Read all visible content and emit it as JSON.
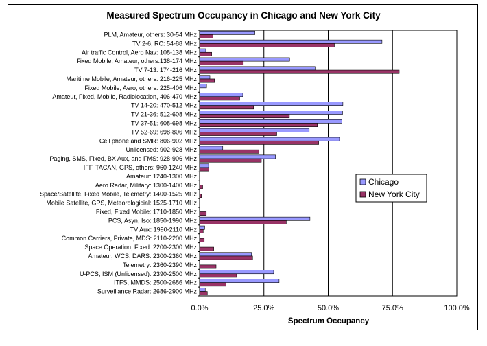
{
  "chart_data": {
    "type": "bar",
    "orientation": "horizontal",
    "title": "Measured Spectrum Occupancy in Chicago and New York City",
    "xlabel": "Spectrum Occupancy",
    "ylabel": "",
    "xlim": [
      0,
      100
    ],
    "xticks": [
      "0.0%",
      "25.0%",
      "50.0%",
      "75.0%",
      "100.0%"
    ],
    "grid": "vertical major gridlines",
    "legend_position": "right",
    "categories": [
      "PLM, Amateur, others: 30-54 MHz",
      "TV 2-6, RC: 54-88 MHz",
      "Air traffic Control, Aero Nav: 108-138 MHz",
      "Fixed Mobile, Amateur, others:138-174 MHz",
      "TV 7-13: 174-216 MHz",
      "Maritime Mobile, Amateur, others: 216-225 MHz",
      "Fixed Mobile, Aero, others: 225-406 MHz",
      "Amateur, Fixed, Mobile, Radiolocation, 406-470 MHz",
      "TV 14-20: 470-512 MHz",
      "TV 21-36: 512-608 MHz",
      "TV 37-51: 608-698 MHz",
      "TV 52-69: 698-806 MHz",
      "Cell phone and SMR: 806-902 MHz",
      "Unlicensed: 902-928 MHz",
      "Paging, SMS, Fixed, BX Aux, and FMS: 928-906 MHz",
      "IFF, TACAN, GPS, others: 960-1240 MHz",
      "Amateur: 1240-1300 MHz",
      "Aero Radar, Military: 1300-1400 MHz",
      "Space/Satellite, Fixed Mobile, Telemetry: 1400-1525 MHz",
      "Mobile Satellite, GPS, Meteorologicial: 1525-1710 MHz",
      "Fixed, Fixed Mobile: 1710-1850 MHz",
      "PCS, Asyn, Iso: 1850-1990 MHz",
      "TV Aux: 1990-2110 MHz",
      "Common Carriers, Private, MDS: 2110-2200 MHz",
      "Space Operation, Fixed: 2200-2300 MHz",
      "Amateur, WCS, DARS: 2300-2360 MHz",
      "Telemetry: 2360-2390 MHz",
      "U-PCS, ISM (Unlicensed): 2390-2500 MHz",
      "ITFS, MMDS: 2500-2686 MHz",
      "Surveillance Radar: 2686-2900 MHz"
    ],
    "series": [
      {
        "name": "Chicago",
        "color": "#9999ff",
        "values": [
          21.5,
          70.9,
          2.4,
          35.0,
          44.9,
          4.0,
          2.7,
          16.8,
          55.7,
          55.6,
          55.3,
          42.6,
          54.4,
          9.0,
          29.5,
          3.5,
          0.0,
          0.0,
          0.0,
          0.0,
          0.0,
          42.9,
          2.0,
          0.0,
          0.0,
          20.2,
          0.0,
          28.8,
          30.9,
          2.2
        ]
      },
      {
        "name": "New York City",
        "color": "#993366",
        "values": [
          5.2,
          52.4,
          4.7,
          17.0,
          77.6,
          5.8,
          0.0,
          15.6,
          21.0,
          34.9,
          45.8,
          30.0,
          46.3,
          23.0,
          24.0,
          3.6,
          0.0,
          1.2,
          0.7,
          0.0,
          2.6,
          33.7,
          1.4,
          1.8,
          5.5,
          20.6,
          6.4,
          14.4,
          10.3,
          3.0
        ]
      }
    ]
  }
}
